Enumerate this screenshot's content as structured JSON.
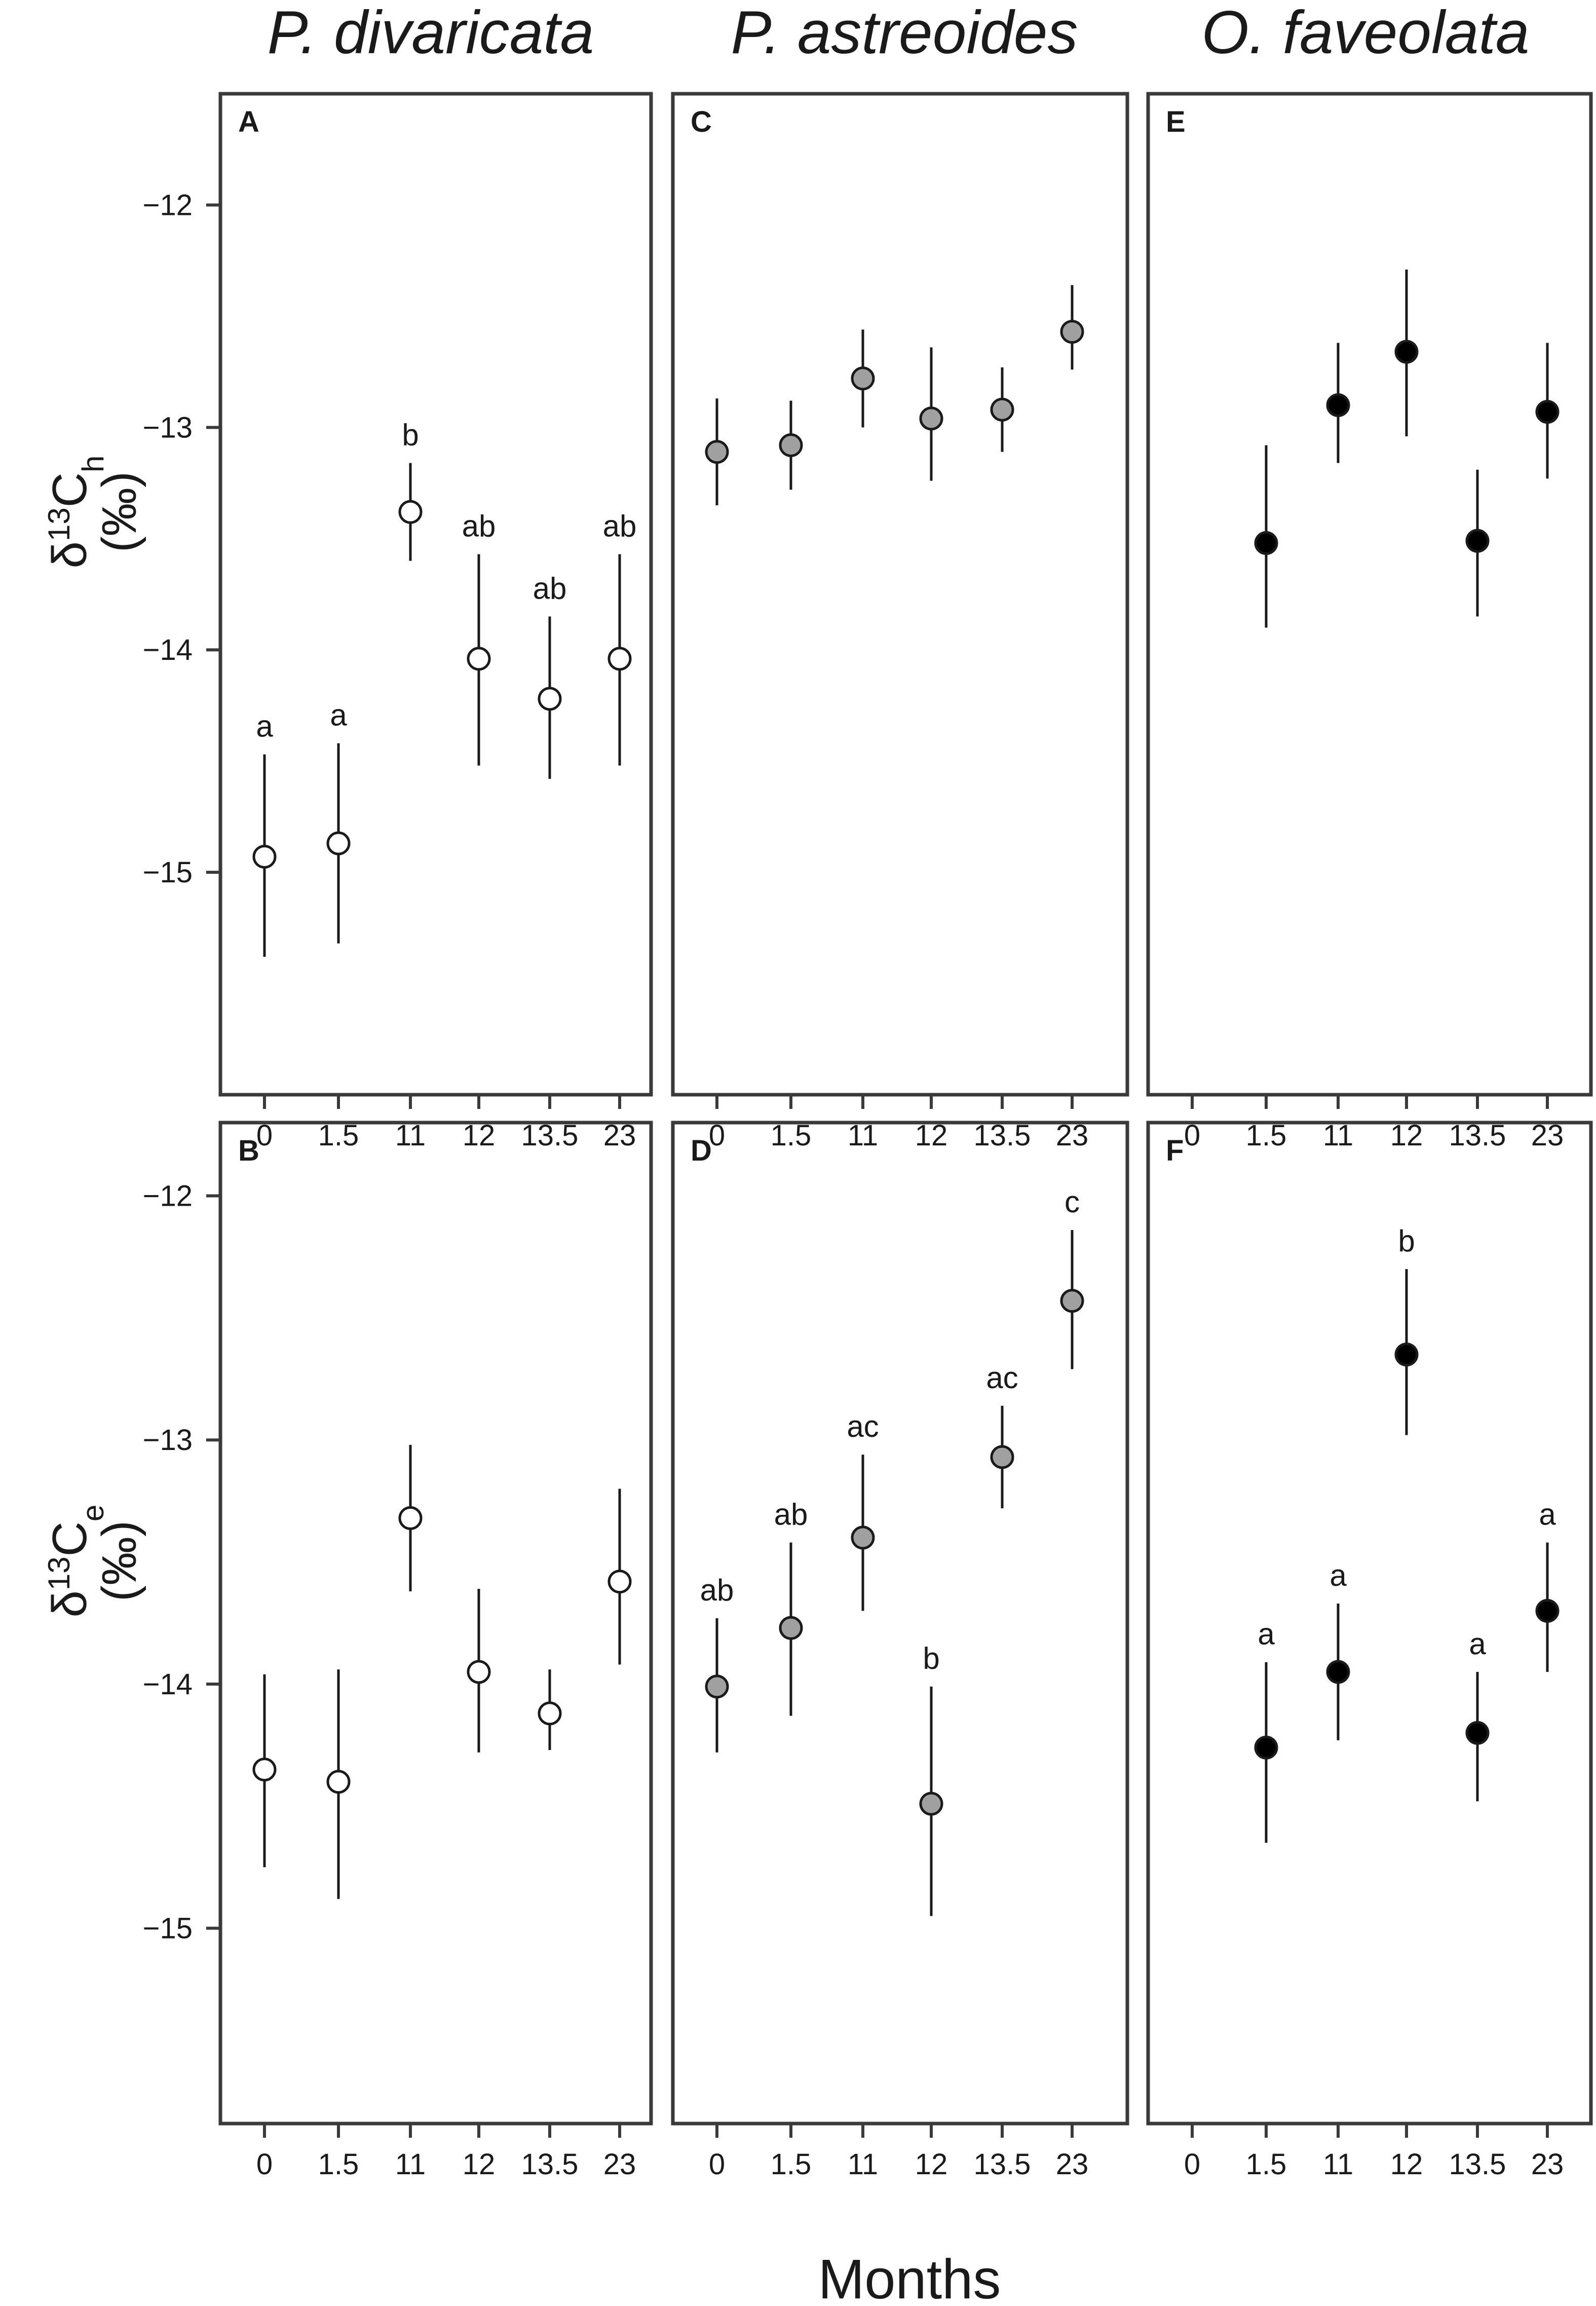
{
  "columns": [
    {
      "title": "P. divaricata"
    },
    {
      "title": "P. astreoides"
    },
    {
      "title": "O. faveolata"
    }
  ],
  "rows": [
    {
      "ylabel_delta": "δ",
      "ylabel_sup": "13",
      "ylabel_main": "C",
      "ylabel_sub": "h",
      "ylabel_unit": "(‰)"
    },
    {
      "ylabel_delta": "δ",
      "ylabel_sup": "13",
      "ylabel_main": "C",
      "ylabel_sub": "e",
      "ylabel_unit": "(‰)"
    }
  ],
  "xaxis_label": "Months",
  "colors": {
    "p_divaricata": "#ffffff",
    "p_astreoides": "#a0a0a0",
    "o_faveolata": "#000000"
  },
  "chart_data": [
    {
      "panel": "A",
      "type": "scatter",
      "row": 0,
      "col": 0,
      "marker_color": "#ffffff",
      "categories": [
        "0",
        "1.5",
        "11",
        "12",
        "13.5",
        "23"
      ],
      "ylim": [
        -16.0,
        -11.5
      ],
      "yticks": [
        -12,
        -13,
        -14,
        -15
      ],
      "points": [
        {
          "x": "0",
          "y": -14.93,
          "low": -15.38,
          "high": -14.47,
          "label": "a"
        },
        {
          "x": "1.5",
          "y": -14.87,
          "low": -15.32,
          "high": -14.42,
          "label": "a"
        },
        {
          "x": "11",
          "y": -13.38,
          "low": -13.6,
          "high": -13.16,
          "label": "b"
        },
        {
          "x": "12",
          "y": -14.04,
          "low": -14.52,
          "high": -13.57,
          "label": "ab"
        },
        {
          "x": "13.5",
          "y": -14.22,
          "low": -14.58,
          "high": -13.85,
          "label": "ab"
        },
        {
          "x": "23",
          "y": -14.04,
          "low": -14.52,
          "high": -13.57,
          "label": "ab"
        }
      ]
    },
    {
      "panel": "B",
      "type": "scatter",
      "row": 1,
      "col": 0,
      "marker_color": "#ffffff",
      "categories": [
        "0",
        "1.5",
        "11",
        "12",
        "13.5",
        "23"
      ],
      "ylim": [
        -15.8,
        -11.7
      ],
      "yticks": [
        -12,
        -13,
        -14,
        -15
      ],
      "points": [
        {
          "x": "0",
          "y": -14.35,
          "low": -14.75,
          "high": -13.96,
          "label": ""
        },
        {
          "x": "1.5",
          "y": -14.4,
          "low": -14.88,
          "high": -13.94,
          "label": ""
        },
        {
          "x": "11",
          "y": -13.32,
          "low": -13.62,
          "high": -13.02,
          "label": ""
        },
        {
          "x": "12",
          "y": -13.95,
          "low": -14.28,
          "high": -13.61,
          "label": ""
        },
        {
          "x": "13.5",
          "y": -14.12,
          "low": -14.27,
          "high": -13.94,
          "label": ""
        },
        {
          "x": "23",
          "y": -13.58,
          "low": -13.92,
          "high": -13.2,
          "label": ""
        }
      ]
    },
    {
      "panel": "C",
      "type": "scatter",
      "row": 0,
      "col": 1,
      "marker_color": "#a0a0a0",
      "categories": [
        "0",
        "1.5",
        "11",
        "12",
        "13.5",
        "23"
      ],
      "ylim": [
        -16.0,
        -11.5
      ],
      "yticks": [
        -12,
        -13,
        -14,
        -15
      ],
      "points": [
        {
          "x": "0",
          "y": -13.11,
          "low": -13.35,
          "high": -12.87,
          "label": ""
        },
        {
          "x": "1.5",
          "y": -13.08,
          "low": -13.28,
          "high": -12.88,
          "label": ""
        },
        {
          "x": "11",
          "y": -12.78,
          "low": -13.0,
          "high": -12.56,
          "label": ""
        },
        {
          "x": "12",
          "y": -12.96,
          "low": -13.24,
          "high": -12.64,
          "label": ""
        },
        {
          "x": "13.5",
          "y": -12.92,
          "low": -13.11,
          "high": -12.73,
          "label": ""
        },
        {
          "x": "23",
          "y": -12.57,
          "low": -12.74,
          "high": -12.36,
          "label": ""
        }
      ]
    },
    {
      "panel": "D",
      "type": "scatter",
      "row": 1,
      "col": 1,
      "marker_color": "#a0a0a0",
      "categories": [
        "0",
        "1.5",
        "11",
        "12",
        "13.5",
        "23"
      ],
      "ylim": [
        -15.8,
        -11.7
      ],
      "yticks": [
        -12,
        -13,
        -14,
        -15
      ],
      "points": [
        {
          "x": "0",
          "y": -14.01,
          "low": -14.28,
          "high": -13.73,
          "label": "ab"
        },
        {
          "x": "1.5",
          "y": -13.77,
          "low": -14.13,
          "high": -13.42,
          "label": "ab"
        },
        {
          "x": "11",
          "y": -13.4,
          "low": -13.7,
          "high": -13.06,
          "label": "ac"
        },
        {
          "x": "12",
          "y": -14.49,
          "low": -14.95,
          "high": -14.01,
          "label": "b"
        },
        {
          "x": "13.5",
          "y": -13.07,
          "low": -13.28,
          "high": -12.86,
          "label": "ac"
        },
        {
          "x": "23",
          "y": -12.43,
          "low": -12.71,
          "high": -12.14,
          "label": "c"
        }
      ]
    },
    {
      "panel": "E",
      "type": "scatter",
      "row": 0,
      "col": 2,
      "marker_color": "#000000",
      "categories": [
        "0",
        "1.5",
        "11",
        "12",
        "13.5",
        "23"
      ],
      "ylim": [
        -16.0,
        -11.5
      ],
      "yticks": [
        -12,
        -13,
        -14,
        -15
      ],
      "points": [
        {
          "x": "1.5",
          "y": -13.52,
          "low": -13.9,
          "high": -13.08,
          "label": ""
        },
        {
          "x": "11",
          "y": -12.9,
          "low": -13.16,
          "high": -12.62,
          "label": ""
        },
        {
          "x": "12",
          "y": -12.66,
          "low": -13.04,
          "high": -12.29,
          "label": ""
        },
        {
          "x": "13.5",
          "y": -13.51,
          "low": -13.85,
          "high": -13.19,
          "label": ""
        },
        {
          "x": "23",
          "y": -12.93,
          "low": -13.23,
          "high": -12.62,
          "label": ""
        }
      ]
    },
    {
      "panel": "F",
      "type": "scatter",
      "row": 1,
      "col": 2,
      "marker_color": "#000000",
      "categories": [
        "0",
        "1.5",
        "11",
        "12",
        "13.5",
        "23"
      ],
      "ylim": [
        -15.8,
        -11.7
      ],
      "yticks": [
        -12,
        -13,
        -14,
        -15
      ],
      "points": [
        {
          "x": "1.5",
          "y": -14.26,
          "low": -14.65,
          "high": -13.91,
          "label": "a"
        },
        {
          "x": "11",
          "y": -13.95,
          "low": -14.23,
          "high": -13.67,
          "label": "a"
        },
        {
          "x": "12",
          "y": -12.65,
          "low": -12.98,
          "high": -12.3,
          "label": "b"
        },
        {
          "x": "13.5",
          "y": -14.2,
          "low": -14.48,
          "high": -13.95,
          "label": "a"
        },
        {
          "x": "23",
          "y": -13.7,
          "low": -13.95,
          "high": -13.42,
          "label": "a"
        }
      ]
    }
  ]
}
